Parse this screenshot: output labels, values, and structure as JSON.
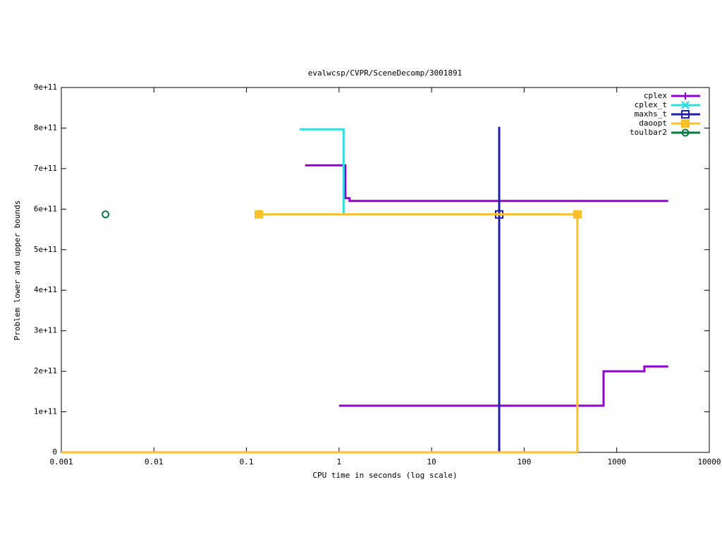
{
  "chart_data": {
    "type": "step-line",
    "title": "evalwcsp/CVPR/SceneDecomp/3001891",
    "x_label": "CPU time in seconds (log scale)",
    "y_label": "Problem lower and upper bounds",
    "xlog": true,
    "xlim": [
      0.001,
      10000
    ],
    "xticks": [
      0.001,
      0.01,
      0.1,
      1,
      10,
      100,
      1000,
      10000
    ],
    "ylim": [
      0,
      900000000000
    ],
    "yticks": [
      0,
      {
        "value": 100000000000,
        "label": "1e+11"
      },
      {
        "value": 200000000000,
        "label": "2e+11"
      },
      {
        "value": 300000000000,
        "label": "3e+11"
      },
      {
        "value": 400000000000,
        "label": "4e+11"
      },
      {
        "value": 500000000000,
        "label": "5e+11"
      },
      {
        "value": 600000000000,
        "label": "6e+11"
      },
      {
        "value": 700000000000,
        "label": "7e+11"
      },
      {
        "value": 800000000000,
        "label": "8e+11"
      },
      {
        "value": 900000000000,
        "label": "9e+11"
      }
    ],
    "legend": "top-right",
    "series": [
      {
        "name": "cplex",
        "color": "#9400d3",
        "marker": "plus",
        "x": [
          0.43,
          1.17,
          1.17,
          1.3,
          1.3,
          3600,
          null,
          1,
          720,
          720,
          1990,
          1990,
          3600
        ],
        "values": [
          708000000000,
          708000000000,
          627000000000,
          627000000000,
          620000000000,
          620000000000,
          null,
          115000000000,
          115000000000,
          200000000000,
          200000000000,
          212000000000,
          212000000000
        ]
      },
      {
        "name": "cplex_t",
        "color": "#2fdede",
        "marker": "cross",
        "x": [
          0.375,
          1.12,
          1.12
        ],
        "values": [
          797000000000,
          797000000000,
          587000000000
        ]
      },
      {
        "name": "maxhs_t",
        "color": "#1f1fa8",
        "marker": "open-square",
        "x": [
          53.7,
          53.7
        ],
        "values": [
          803000000000,
          0
        ],
        "points": {
          "x": [
            53.7
          ],
          "values": [
            587000000000
          ]
        }
      },
      {
        "name": "daoopt",
        "color": "#fbbf2a",
        "marker": "filled-square",
        "x": [
          0.136,
          376,
          376,
          null,
          0.001,
          376
        ],
        "values": [
          587000000000,
          587000000000,
          0,
          null,
          0,
          0
        ],
        "points": {
          "x": [
            0.136,
            376
          ],
          "values": [
            587000000000,
            587000000000
          ]
        }
      },
      {
        "name": "toulbar2",
        "color": "#0a7a45",
        "marker": "open-circle",
        "points": {
          "x": [
            0.003
          ],
          "values": [
            587000000000
          ]
        }
      }
    ]
  }
}
